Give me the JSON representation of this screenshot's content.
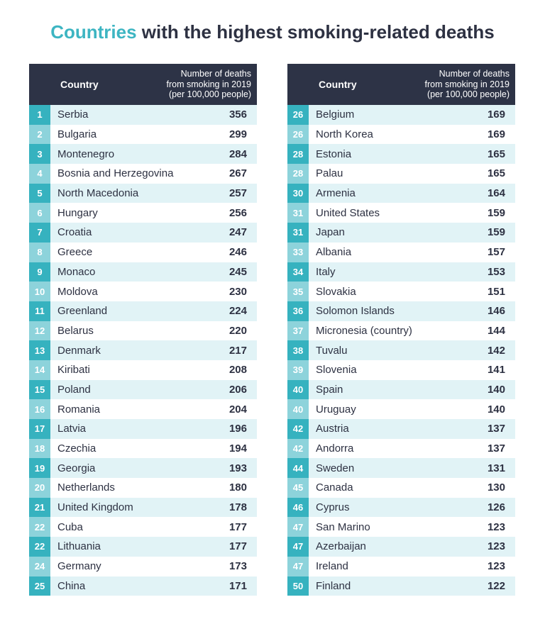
{
  "title": {
    "highlight": "Countries",
    "rest": "with the highest smoking-related deaths"
  },
  "tables": [
    {
      "header": {
        "country": "Country",
        "value_lines": [
          "Number of deaths",
          "from smoking in 2019",
          "(per 100,000 people)"
        ]
      },
      "rows": [
        [
          1,
          "Serbia",
          356
        ],
        [
          2,
          "Bulgaria",
          299
        ],
        [
          3,
          "Montenegro",
          284
        ],
        [
          4,
          "Bosnia and Herzegovina",
          267
        ],
        [
          5,
          "North Macedonia",
          257
        ],
        [
          6,
          "Hungary",
          256
        ],
        [
          7,
          "Croatia",
          247
        ],
        [
          8,
          "Greece",
          246
        ],
        [
          9,
          "Monaco",
          245
        ],
        [
          10,
          "Moldova",
          230
        ],
        [
          11,
          "Greenland",
          224
        ],
        [
          12,
          "Belarus",
          220
        ],
        [
          13,
          "Denmark",
          217
        ],
        [
          14,
          "Kiribati",
          208
        ],
        [
          15,
          "Poland",
          206
        ],
        [
          16,
          "Romania",
          204
        ],
        [
          17,
          "Latvia",
          196
        ],
        [
          18,
          "Czechia",
          194
        ],
        [
          19,
          "Georgia",
          193
        ],
        [
          20,
          "Netherlands",
          180
        ],
        [
          21,
          "United Kingdom",
          178
        ],
        [
          22,
          "Cuba",
          177
        ],
        [
          22,
          "Lithuania",
          177
        ],
        [
          24,
          "Germany",
          173
        ],
        [
          25,
          "China",
          171
        ]
      ]
    },
    {
      "header": {
        "country": "Country",
        "value_lines": [
          "Number of deaths",
          "from smoking in 2019",
          "(per 100,000 people)"
        ]
      },
      "rows": [
        [
          26,
          "Belgium",
          169
        ],
        [
          26,
          "North Korea",
          169
        ],
        [
          28,
          "Estonia",
          165
        ],
        [
          28,
          "Palau",
          165
        ],
        [
          30,
          "Armenia",
          164
        ],
        [
          31,
          "United States",
          159
        ],
        [
          31,
          "Japan",
          159
        ],
        [
          33,
          "Albania",
          157
        ],
        [
          34,
          "Italy",
          153
        ],
        [
          35,
          "Slovakia",
          151
        ],
        [
          36,
          "Solomon Islands",
          146
        ],
        [
          37,
          "Micronesia (country)",
          144
        ],
        [
          38,
          "Tuvalu",
          142
        ],
        [
          39,
          "Slovenia",
          141
        ],
        [
          40,
          "Spain",
          140
        ],
        [
          40,
          "Uruguay",
          140
        ],
        [
          42,
          "Austria",
          137
        ],
        [
          42,
          "Andorra",
          137
        ],
        [
          44,
          "Sweden",
          131
        ],
        [
          45,
          "Canada",
          130
        ],
        [
          46,
          "Cyprus",
          126
        ],
        [
          47,
          "San Marino",
          123
        ],
        [
          47,
          "Azerbaijan",
          123
        ],
        [
          47,
          "Ireland",
          123
        ],
        [
          50,
          "Finland",
          122
        ]
      ]
    }
  ]
}
